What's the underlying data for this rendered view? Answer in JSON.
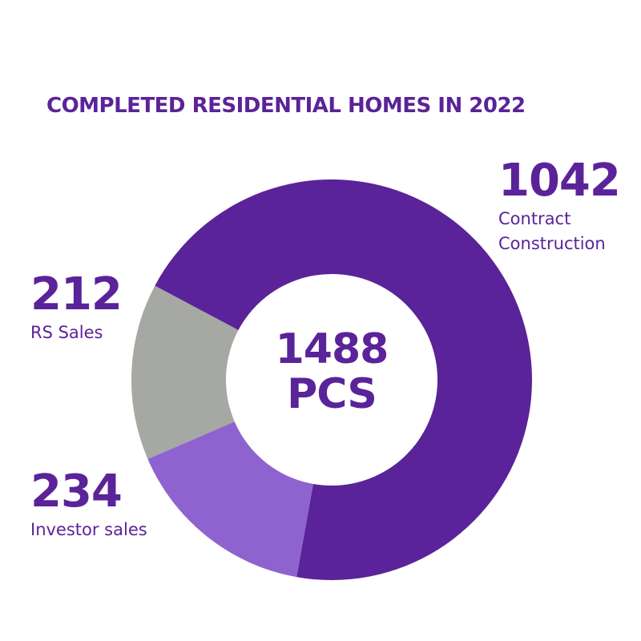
{
  "chart_data": {
    "type": "pie",
    "title": "COMPLETED RESIDENTIAL HOMES IN 2022",
    "total_number": "1488",
    "total_unit": "PCS",
    "slices": [
      {
        "label": "Contract Construction",
        "value": 1042,
        "color": "#5b2399"
      },
      {
        "label": "Investor sales",
        "value": 234,
        "color": "#8e63cf"
      },
      {
        "label": "RS Sales",
        "value": 212,
        "color": "#a5a8a3"
      }
    ]
  },
  "callouts": {
    "contract": {
      "value": "1042",
      "label": "Contract\nConstruction"
    },
    "rs": {
      "value": "212",
      "label": "RS Sales"
    },
    "investor": {
      "value": "234",
      "label": "Investor sales"
    }
  }
}
